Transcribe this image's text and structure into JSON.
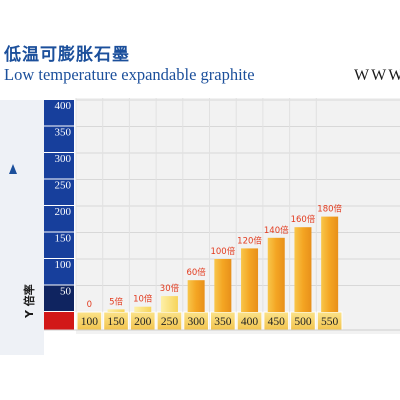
{
  "header": {
    "title_cn": "低温可膨胀石墨",
    "title_en": "Low temperature expandable graphite",
    "www": "WWW"
  },
  "colors": {
    "axis_blue": "#173f9c",
    "axis_navy": "#0f2460",
    "origin_red": "#d21818",
    "bar_orange": "#f4a523",
    "bar_yellow": "#fbe27a",
    "label_red": "#e23b1f",
    "x_cell": "#f6d364"
  },
  "chart_data": {
    "type": "bar",
    "title": "Low temperature expandable graphite",
    "ylabel": "Y 倍率",
    "xlabel": "",
    "ylim": [
      0,
      400
    ],
    "yticks": [
      "400",
      "350",
      "300",
      "250",
      "200",
      "150",
      "100",
      "50"
    ],
    "categories": [
      "100",
      "150",
      "200",
      "250",
      "300",
      "350",
      "400",
      "450",
      "500",
      "550"
    ],
    "values": [
      0,
      5,
      10,
      30,
      60,
      100,
      120,
      140,
      160,
      180
    ],
    "data_labels": [
      "0",
      "5倍",
      "10倍",
      "30倍",
      "60倍",
      "100倍",
      "120倍",
      "140倍",
      "160倍",
      "180倍"
    ],
    "grid": true
  }
}
